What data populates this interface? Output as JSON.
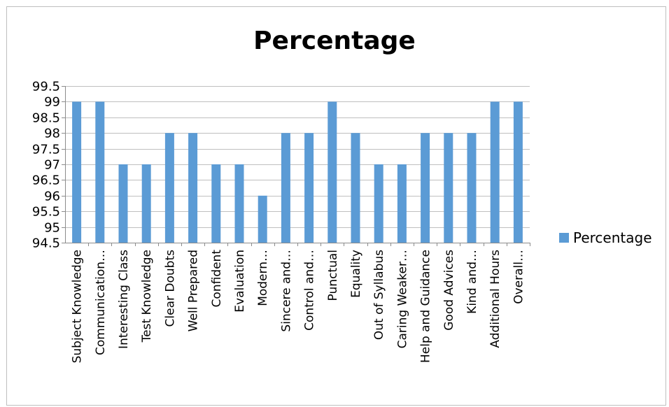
{
  "chart_data": {
    "type": "bar",
    "title": "Percentage",
    "xlabel": "",
    "ylabel": "",
    "ylim": [
      94.5,
      99.5
    ],
    "yticks": [
      "99.5",
      "99",
      "98.5",
      "98",
      "97.5",
      "97",
      "96.5",
      "96",
      "95.5",
      "95",
      "94.5"
    ],
    "grid": true,
    "legend": "right",
    "categories": [
      "Subject Knowledge",
      "Communication…",
      "Interesting Class",
      "Test Knowledge",
      "Clear Doubts",
      "Well Prepared",
      "Confident",
      "Evaluation",
      "Modern…",
      "Sincere and…",
      "Control and…",
      "Punctual",
      "Equality",
      "Out of Syllabus",
      "Caring Weaker…",
      "Help and Guidance",
      "Good Advices",
      "Kind and…",
      "Additional Hours",
      "Overall…"
    ],
    "series": [
      {
        "name": "Percentage",
        "color": "#5b9bd5",
        "values": [
          99,
          99,
          97,
          97,
          98,
          98,
          97,
          97,
          96,
          98,
          98,
          99,
          98,
          97,
          97,
          98,
          98,
          98,
          99,
          99
        ]
      }
    ]
  }
}
